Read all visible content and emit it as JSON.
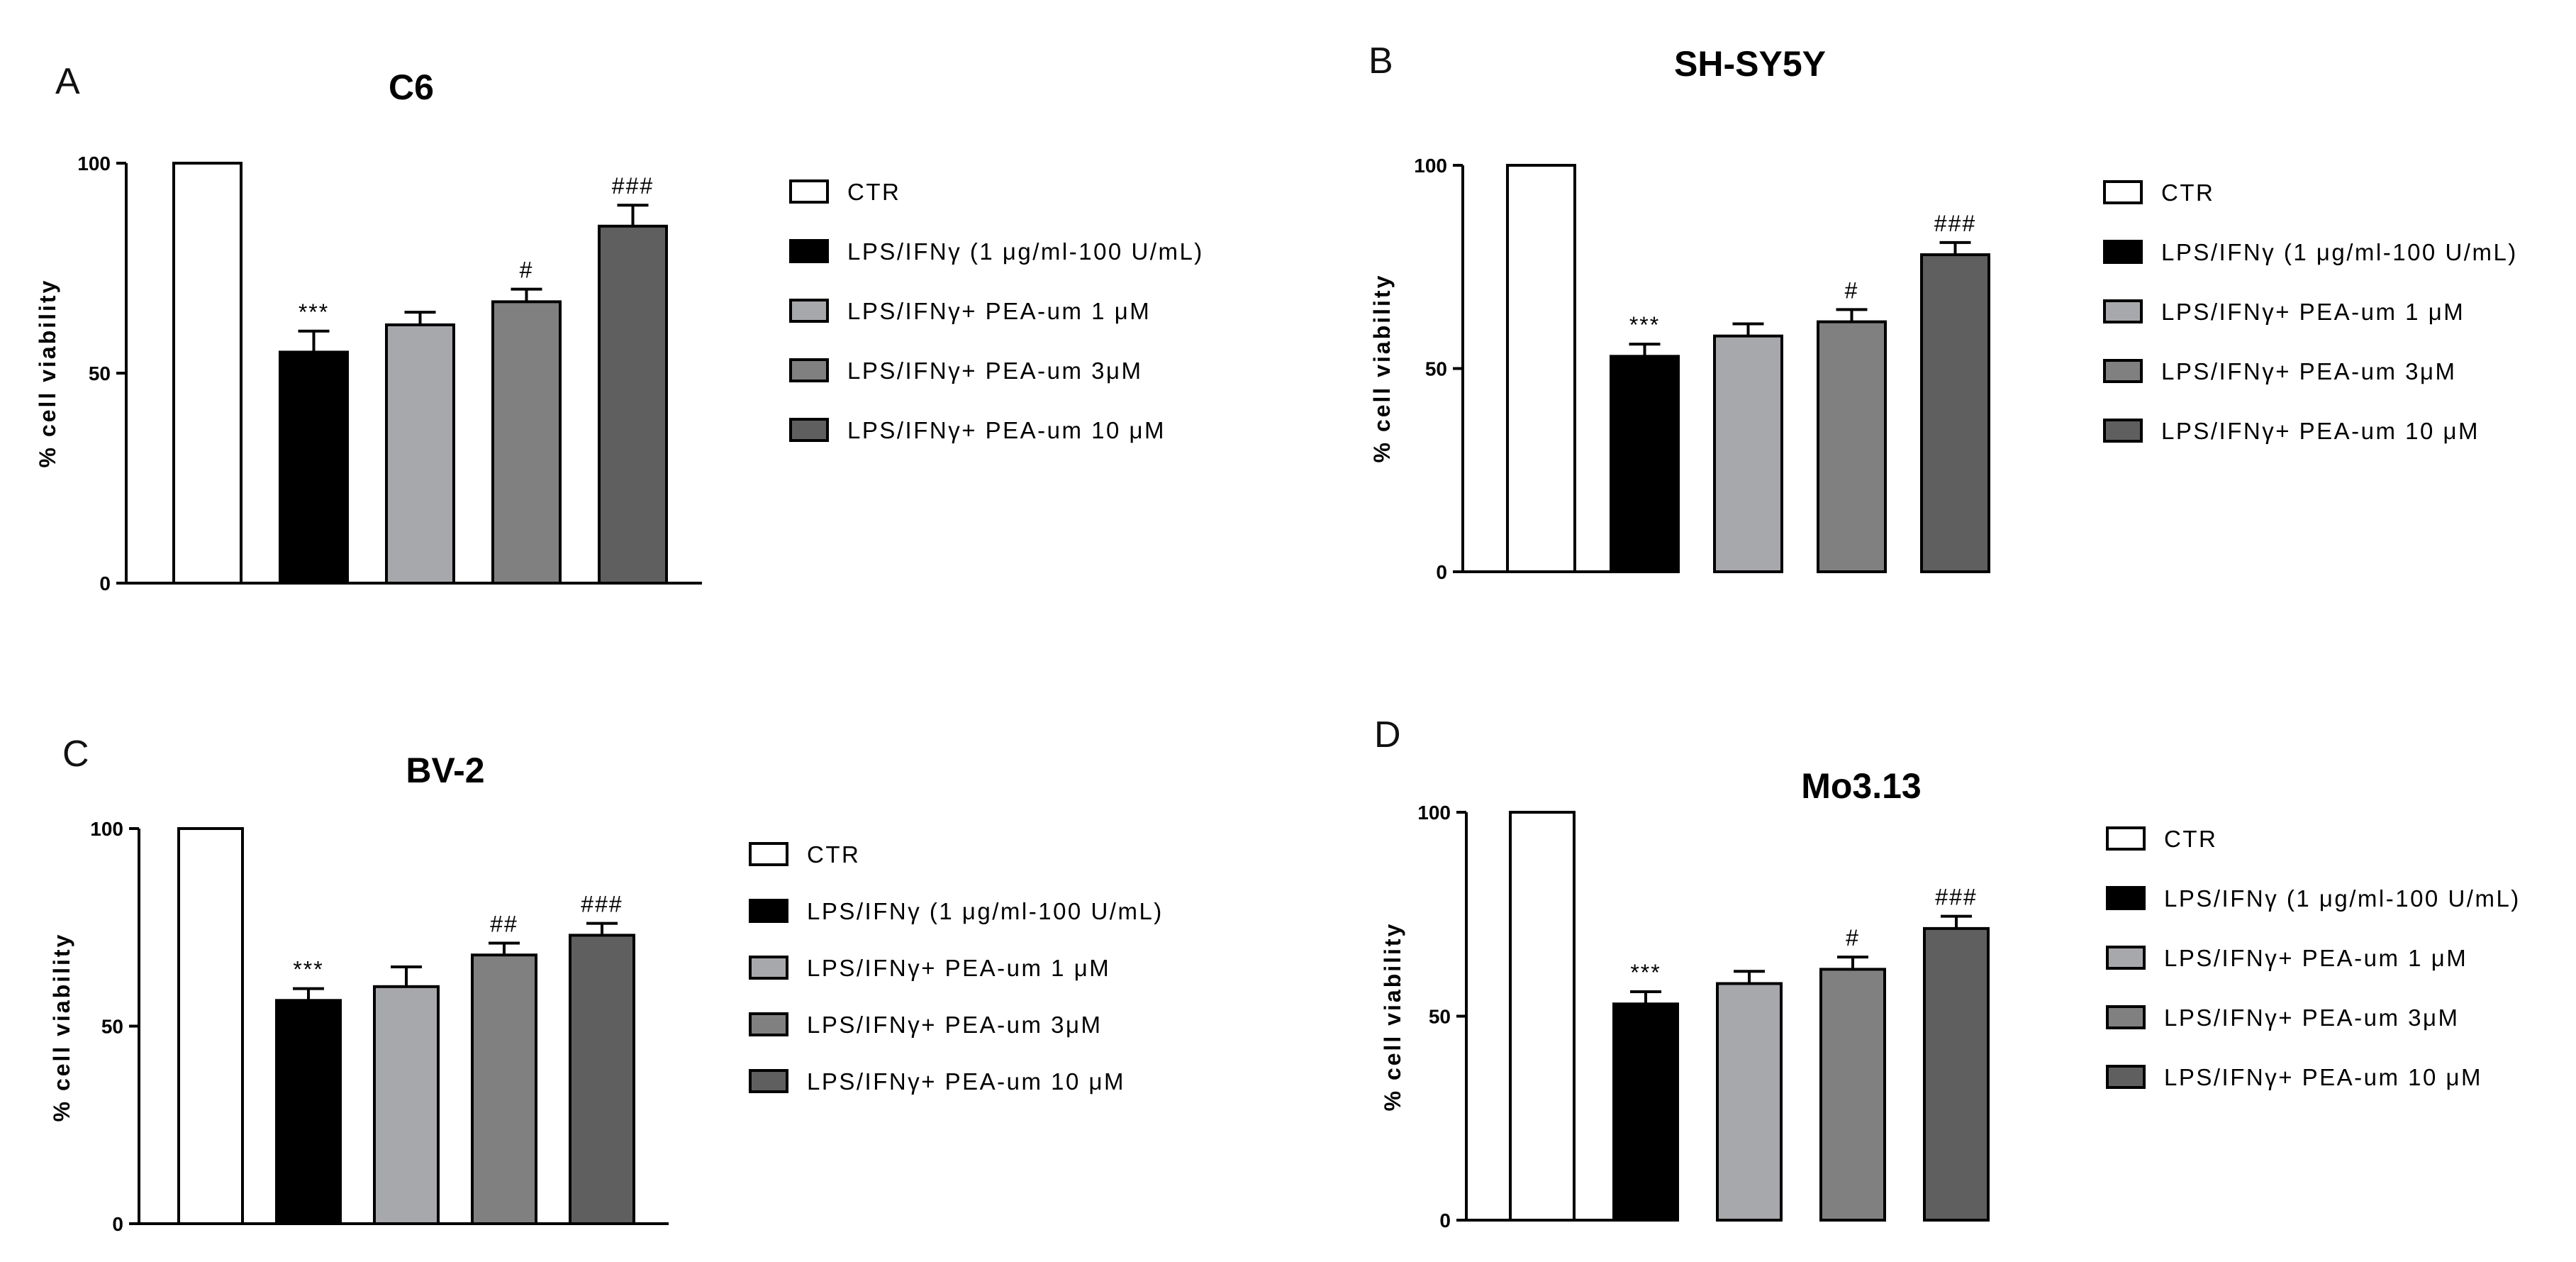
{
  "chart_data": [
    {
      "panel": "A",
      "type": "bar",
      "title": "C6",
      "ylabel": "% cell viability",
      "xlabel": "",
      "ylim": [
        0,
        100
      ],
      "yticks": [
        "0",
        "50",
        "100"
      ],
      "categories": [
        "CTR",
        "LPS/IFNγ (1 μg/ml-100 U/mL)",
        "LPS/IFNγ+ PEA-um 1 μM",
        "LPS/IFNγ+ PEA-um 3μM",
        "LPS/IFNγ+ PEA-um 10 μM"
      ],
      "values": [
        100,
        55,
        61.5,
        67,
        85
      ],
      "errors": [
        0,
        5,
        3,
        3,
        5
      ],
      "significance": [
        "",
        "***",
        "",
        "#",
        "###"
      ],
      "colors": [
        "#ffffff",
        "#000000",
        "#a7a8ab",
        "#808080",
        "#5f5f5f"
      ]
    },
    {
      "panel": "B",
      "type": "bar",
      "title": "SH-SY5Y",
      "ylabel": "% cell viability",
      "xlabel": "",
      "ylim": [
        0,
        100
      ],
      "yticks": [
        "0",
        "50",
        "100"
      ],
      "categories": [
        "CTR",
        "LPS/IFNγ (1 μg/ml-100 U/mL)",
        "LPS/IFNγ+ PEA-um 1 μM",
        "LPS/IFNγ+ PEA-um 3μM",
        "LPS/IFNγ+ PEA-um 10 μM"
      ],
      "values": [
        100,
        53,
        58,
        61.5,
        78
      ],
      "errors": [
        0,
        3,
        3,
        3,
        3
      ],
      "significance": [
        "",
        "***",
        "",
        "#",
        "###"
      ],
      "colors": [
        "#ffffff",
        "#000000",
        "#a7a8ab",
        "#808080",
        "#5f5f5f"
      ]
    },
    {
      "panel": "C",
      "type": "bar",
      "title": "BV-2",
      "ylabel": "% cell viability",
      "xlabel": "",
      "ylim": [
        0,
        100
      ],
      "yticks": [
        "0",
        "50",
        "100"
      ],
      "categories": [
        "CTR",
        "LPS/IFNγ (1 μg/ml-100 U/mL)",
        "LPS/IFNγ+ PEA-um 1 μM",
        "LPS/IFNγ+ PEA-um 3μM",
        "LPS/IFNγ+ PEA-um 10 μM"
      ],
      "values": [
        100,
        56.5,
        60,
        68,
        73
      ],
      "errors": [
        0,
        3,
        5,
        3,
        3
      ],
      "significance": [
        "",
        "***",
        "",
        "##",
        "###"
      ],
      "colors": [
        "#ffffff",
        "#000000",
        "#a7a8ab",
        "#808080",
        "#5f5f5f"
      ]
    },
    {
      "panel": "D",
      "type": "bar",
      "title": "Mo3.13",
      "ylabel": "% cell viability",
      "xlabel": "",
      "ylim": [
        0,
        100
      ],
      "yticks": [
        "0",
        "50",
        "100"
      ],
      "categories": [
        "CTR",
        "LPS/IFNγ (1 μg/ml-100 U/mL)",
        "LPS/IFNγ+ PEA-um 1 μM",
        "LPS/IFNγ+ PEA-um 3μM",
        "LPS/IFNγ+ PEA-um 10 μM"
      ],
      "values": [
        100,
        53,
        58,
        61.5,
        71.5
      ],
      "errors": [
        0,
        3,
        3,
        3,
        3
      ],
      "significance": [
        "",
        "***",
        "",
        "#",
        "###"
      ],
      "colors": [
        "#ffffff",
        "#000000",
        "#a7a8ab",
        "#808080",
        "#5f5f5f"
      ]
    }
  ]
}
